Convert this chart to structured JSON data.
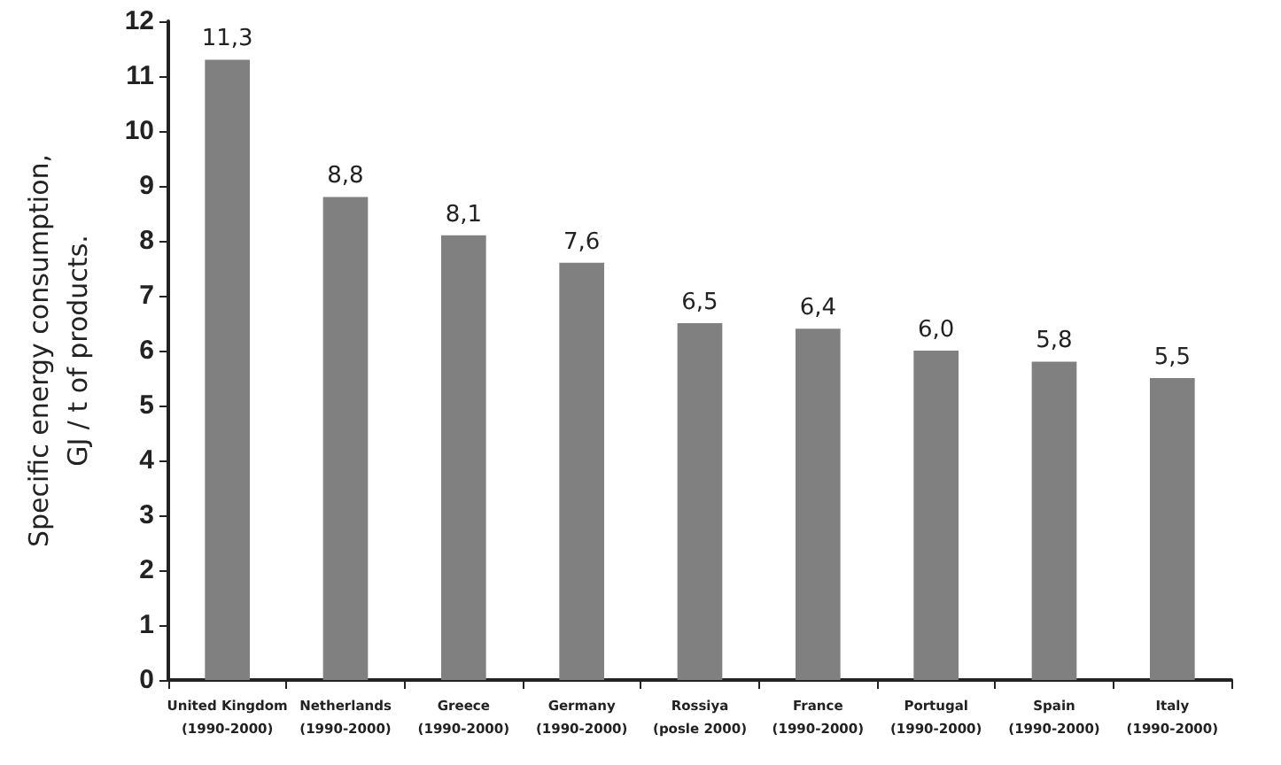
{
  "chart_data": {
    "type": "bar",
    "ylabel": "Specific energy consumption,\nGJ / t of products.",
    "categories": [
      "United Kingdom\n(1990-2000)",
      "Netherlands\n(1990-2000)",
      "Greece\n(1990-2000)",
      "Germany\n(1990-2000)",
      "Rossiya\n(posle 2000)",
      "France\n(1990-2000)",
      "Portugal\n(1990-2000)",
      "Spain\n(1990-2000)",
      "Italy\n(1990-2000)"
    ],
    "values": [
      11.3,
      8.8,
      8.1,
      7.6,
      6.5,
      6.4,
      6.0,
      5.8,
      5.5
    ],
    "value_labels": [
      "11,3",
      "8,8",
      "8,1",
      "7,6",
      "6,5",
      "6,4",
      "6,0",
      "5,8",
      "5,5"
    ],
    "color": "#808080",
    "ylim": [
      0,
      12
    ],
    "yticks": [
      0,
      1,
      2,
      3,
      4,
      5,
      6,
      7,
      8,
      9,
      10,
      11,
      12
    ],
    "grid": false
  }
}
